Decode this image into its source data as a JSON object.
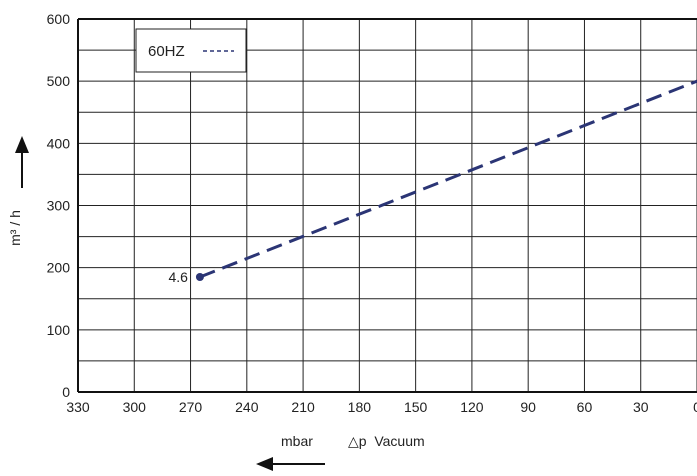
{
  "chart_data": {
    "type": "line",
    "xlabel_unit": "mbar",
    "xlabel": "△p  Vacuum",
    "ylabel": "m³ / h",
    "xlim": [
      330,
      0
    ],
    "ylim": [
      0,
      600
    ],
    "x_ticks": [
      "330",
      "300",
      "270",
      "240",
      "210",
      "180",
      "150",
      "120",
      "90",
      "60",
      "30",
      "0"
    ],
    "y_ticks": [
      "0",
      "100",
      "200",
      "300",
      "400",
      "500",
      "600"
    ],
    "grid": true,
    "x_reversed": true,
    "legend": {
      "text": "60HZ",
      "placement": "top-left"
    },
    "series": [
      {
        "name": "60HZ",
        "style": "dashed",
        "color": "#2b3575",
        "x": [
          265,
          0
        ],
        "y": [
          185,
          500
        ]
      }
    ],
    "annotations": [
      {
        "text": "4.6",
        "x": 265,
        "y": 185
      }
    ]
  }
}
